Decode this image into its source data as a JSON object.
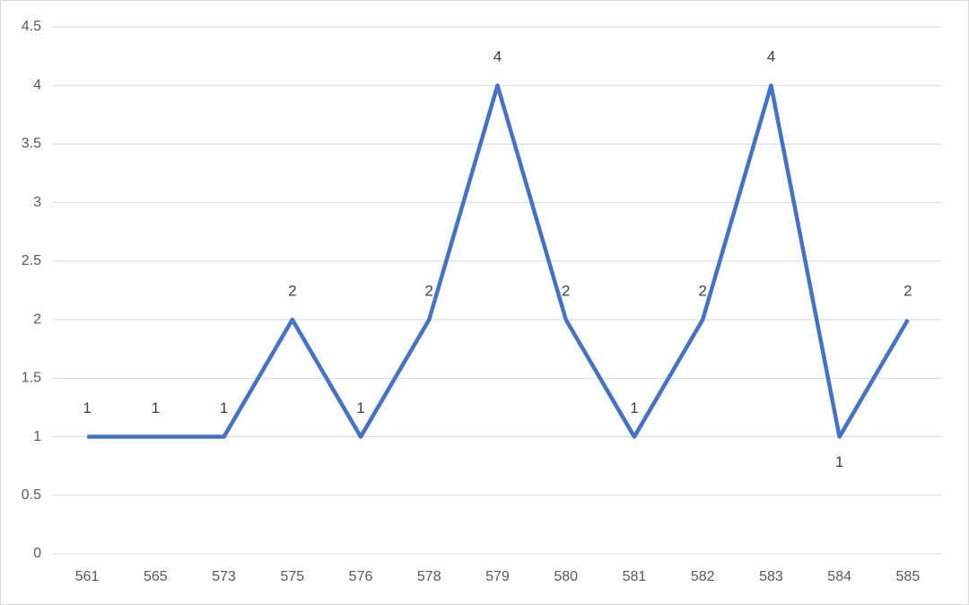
{
  "chart_data": {
    "type": "line",
    "categories": [
      "561",
      "565",
      "573",
      "575",
      "576",
      "578",
      "579",
      "580",
      "581",
      "582",
      "583",
      "584",
      "585"
    ],
    "series": [
      {
        "color": "#4472c4",
        "values": [
          1,
          1,
          1,
          2,
          1,
          2,
          4,
          2,
          1,
          2,
          4,
          1,
          2
        ]
      }
    ],
    "ylim": [
      0,
      4.5
    ],
    "yticks": [
      0,
      0.5,
      1,
      1.5,
      2,
      2.5,
      3,
      3.5,
      4,
      4.5
    ],
    "grid": true,
    "data_labels": true
  }
}
